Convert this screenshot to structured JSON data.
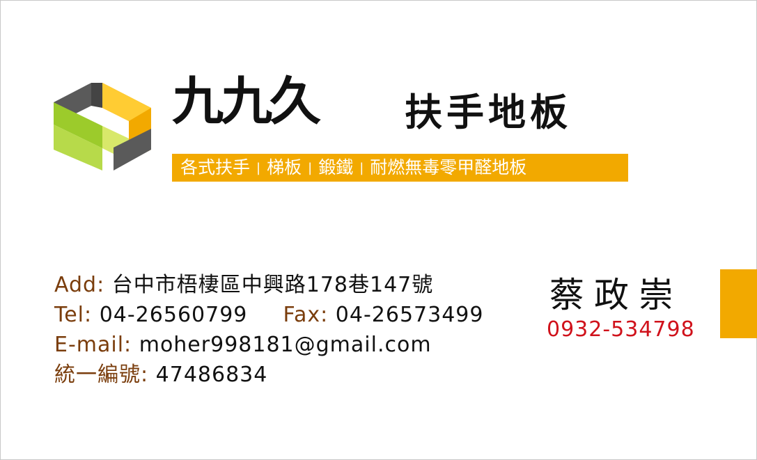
{
  "brand": {
    "name_large": "九九久",
    "name_small": "扶手地板"
  },
  "services": [
    "各式扶手",
    "梯板",
    "鍛鐵",
    "耐燃無毒零甲醛地板"
  ],
  "separator": "|",
  "contact": {
    "address_label": "Add:",
    "address_value": "台中市梧棲區中興路178巷147號",
    "tel_label": "Tel:",
    "tel_value": "04-26560799",
    "fax_label": "Fax:",
    "fax_value": "04-26573499",
    "email_label": "E-mail:",
    "email_value": "moher998181@gmail.com",
    "tax_label": "統一編號:",
    "tax_value": "47486834"
  },
  "person": {
    "name": "蔡政崇",
    "mobile": "0932-534798"
  },
  "colors": {
    "accent": "#f2a900",
    "label": "#7a3d0c",
    "mobile": "#d0121b",
    "logo_green": "#9ccb2b",
    "logo_gray": "#555555"
  }
}
